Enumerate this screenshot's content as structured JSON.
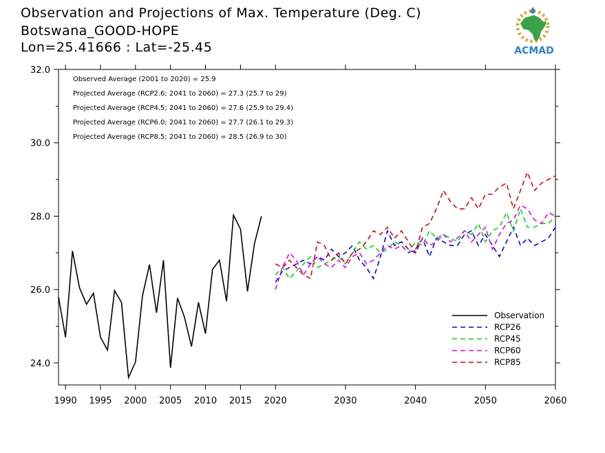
{
  "header": {
    "title": "Observation and Projections of Max. Temperature (Deg. C)",
    "location": "Botswana_GOOD-HOPE",
    "coords": "Lon=25.41666 : Lat=-25.45"
  },
  "logo": {
    "text": "ACMAD",
    "icon": "africa-map-icon",
    "color": "#2a7fd4",
    "map_color": "#3aa34a",
    "sun_color": "#e8a42a"
  },
  "chart_data": {
    "type": "line",
    "xlim": [
      1989,
      2060
    ],
    "ylim": [
      23.4,
      32.0
    ],
    "xticks": [
      1990,
      1995,
      2000,
      2005,
      2010,
      2015,
      2020,
      2030,
      2040,
      2050,
      2060
    ],
    "yticks": [
      24.0,
      26.0,
      28.0,
      30.0,
      32.0
    ],
    "ytick_labels": [
      "24.0",
      "26.0",
      "28.0",
      "30.0",
      "32.0"
    ],
    "grid": false,
    "legend_position": "bottom-right",
    "annotations": [
      "Observed Average (2001 to 2020) = 25.9",
      "Projected Average (RCP2.6; 2041 to 2060) = 27.3 (25.7 to 29)",
      "Projected Average (RCP4.5; 2041 to 2060) = 27.6 (25.9 to 29.4)",
      "Projected Average (RCP6.0; 2041 to 2060) = 27.7 (26.1 to 29.3)",
      "Projected Average (RCP8.5; 2041 to 2060) = 28.5 (26.9 to 30)"
    ],
    "series": [
      {
        "name": "Observation",
        "color": "#000000",
        "dash": "solid",
        "x": [
          1989,
          1990,
          1991,
          1992,
          1993,
          1994,
          1995,
          1996,
          1997,
          1998,
          1999,
          2000,
          2001,
          2002,
          2003,
          2004,
          2005,
          2006,
          2007,
          2008,
          2009,
          2010,
          2011,
          2012,
          2013,
          2014,
          2015,
          2016,
          2017,
          2018,
          2019
        ],
        "y": [
          25.8,
          24.7,
          27.05,
          26.05,
          25.6,
          25.9,
          24.7,
          24.35,
          25.97,
          25.65,
          23.6,
          24.03,
          25.83,
          26.68,
          25.37,
          26.8,
          23.87,
          25.77,
          25.25,
          24.45,
          25.65,
          24.8,
          26.55,
          26.8,
          25.68,
          28.03,
          27.65,
          25.95,
          27.25,
          28.0,
          null
        ]
      },
      {
        "name": "RCP26",
        "color": "#0000ff",
        "dash": "dashed",
        "x": [
          2020,
          2021,
          2022,
          2023,
          2024,
          2025,
          2026,
          2027,
          2028,
          2029,
          2030,
          2031,
          2032,
          2033,
          2034,
          2035,
          2036,
          2037,
          2038,
          2039,
          2040,
          2041,
          2042,
          2043,
          2044,
          2045,
          2046,
          2047,
          2048,
          2049,
          2050,
          2051,
          2052,
          2053,
          2054,
          2055,
          2056,
          2057,
          2058,
          2059,
          2060
        ],
        "y": [
          26.2,
          26.5,
          26.6,
          26.7,
          26.8,
          26.7,
          26.9,
          26.8,
          27.1,
          26.9,
          27.0,
          27.2,
          26.8,
          26.6,
          26.3,
          26.9,
          27.6,
          27.2,
          27.3,
          27.1,
          27.0,
          27.4,
          26.9,
          27.4,
          27.3,
          27.2,
          27.2,
          27.5,
          27.6,
          27.2,
          27.5,
          27.2,
          26.9,
          27.3,
          27.7,
          27.2,
          27.4,
          27.2,
          27.3,
          27.4,
          27.7
        ]
      },
      {
        "name": "RCP45",
        "color": "#00dd00",
        "dash": "dashed",
        "x": [
          2020,
          2021,
          2022,
          2023,
          2024,
          2025,
          2026,
          2027,
          2028,
          2029,
          2030,
          2031,
          2032,
          2033,
          2034,
          2035,
          2036,
          2037,
          2038,
          2039,
          2040,
          2041,
          2042,
          2043,
          2044,
          2045,
          2046,
          2047,
          2048,
          2049,
          2050,
          2051,
          2052,
          2053,
          2054,
          2055,
          2056,
          2057,
          2058,
          2059,
          2060
        ],
        "y": [
          26.4,
          26.6,
          26.3,
          26.5,
          26.7,
          26.9,
          26.6,
          26.7,
          26.8,
          26.9,
          26.7,
          27.0,
          27.3,
          27.1,
          27.2,
          27.0,
          27.1,
          27.3,
          27.2,
          27.0,
          27.3,
          27.2,
          27.6,
          27.4,
          27.5,
          27.4,
          27.3,
          27.6,
          27.5,
          27.8,
          27.3,
          27.6,
          27.7,
          28.1,
          27.6,
          28.2,
          27.7,
          27.7,
          27.8,
          27.8,
          28.0
        ]
      },
      {
        "name": "RCP60",
        "color": "#ee00ee",
        "dash": "dashed",
        "x": [
          2020,
          2021,
          2022,
          2023,
          2024,
          2025,
          2026,
          2027,
          2028,
          2029,
          2030,
          2031,
          2032,
          2033,
          2034,
          2035,
          2036,
          2037,
          2038,
          2039,
          2040,
          2041,
          2042,
          2043,
          2044,
          2045,
          2046,
          2047,
          2048,
          2049,
          2050,
          2051,
          2052,
          2053,
          2054,
          2055,
          2056,
          2057,
          2058,
          2059,
          2060
        ],
        "y": [
          26.0,
          26.6,
          27.0,
          26.8,
          26.4,
          26.7,
          26.9,
          26.7,
          26.6,
          26.8,
          26.6,
          26.9,
          27.0,
          26.7,
          26.8,
          27.0,
          27.2,
          27.1,
          27.2,
          27.0,
          27.1,
          27.4,
          27.2,
          27.3,
          27.5,
          27.3,
          27.4,
          27.6,
          27.3,
          27.5,
          27.7,
          27.1,
          27.5,
          27.8,
          27.9,
          28.3,
          28.2,
          27.9,
          27.8,
          28.1,
          28.0
        ]
      },
      {
        "name": "RCP85",
        "color": "#ee0000",
        "dash": "dashed",
        "x": [
          2020,
          2021,
          2022,
          2023,
          2024,
          2025,
          2026,
          2027,
          2028,
          2029,
          2030,
          2031,
          2032,
          2033,
          2034,
          2035,
          2036,
          2037,
          2038,
          2039,
          2040,
          2041,
          2042,
          2043,
          2044,
          2045,
          2046,
          2047,
          2048,
          2049,
          2050,
          2051,
          2052,
          2053,
          2054,
          2055,
          2056,
          2057,
          2058,
          2059,
          2060
        ],
        "y": [
          26.7,
          26.6,
          26.8,
          26.6,
          26.4,
          26.3,
          27.3,
          27.2,
          26.8,
          27.0,
          26.7,
          27.0,
          27.1,
          27.3,
          27.6,
          27.5,
          27.7,
          27.4,
          27.6,
          27.3,
          27.0,
          27.7,
          27.8,
          28.2,
          28.7,
          28.4,
          28.2,
          28.2,
          28.5,
          28.2,
          28.6,
          28.6,
          28.8,
          28.9,
          28.2,
          28.7,
          29.2,
          28.7,
          28.9,
          29.0,
          29.1
        ]
      }
    ]
  }
}
